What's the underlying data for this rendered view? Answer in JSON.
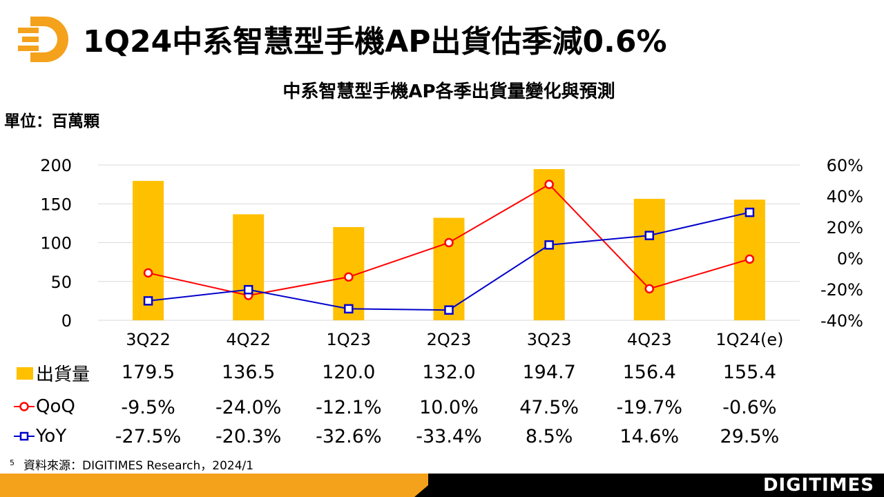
{
  "header": {
    "title": "1Q24中系智慧型手機AP出貨估季減0.6%",
    "logo_icon": "digitimes-d-logo-icon",
    "logo_color": "#F4A11C"
  },
  "chart_title": "中系智慧型手機AP各季出貨量變化與預測",
  "unit_label": "單位：百萬顆",
  "chart_data": {
    "type": "bar",
    "title": "中系智慧型手機AP各季出貨量變化與預測",
    "categories": [
      "3Q22",
      "4Q22",
      "1Q23",
      "2Q23",
      "3Q23",
      "4Q23",
      "1Q24(e)"
    ],
    "series": [
      {
        "name": "出貨量",
        "type": "bar",
        "axis": "left",
        "color": "#FFC000",
        "values": [
          179.5,
          136.5,
          120.0,
          132.0,
          194.7,
          156.4,
          155.4
        ],
        "labels": [
          "179.5",
          "136.5",
          "120.0",
          "132.0",
          "194.7",
          "156.4",
          "155.4"
        ]
      },
      {
        "name": "QoQ",
        "type": "line",
        "axis": "right",
        "color": "#FF0000",
        "marker": "circle",
        "values": [
          -9.5,
          -24.0,
          -12.1,
          10.0,
          47.5,
          -19.7,
          -0.6
        ],
        "labels": [
          "-9.5%",
          "-24.0%",
          "-12.1%",
          "10.0%",
          "47.5%",
          "-19.7%",
          "-0.6%"
        ]
      },
      {
        "name": "YoY",
        "type": "line",
        "axis": "right",
        "color": "#0000CC",
        "marker": "square",
        "values": [
          -27.5,
          -20.3,
          -32.6,
          -33.4,
          8.5,
          14.6,
          29.5
        ],
        "labels": [
          "-27.5%",
          "-20.3%",
          "-32.6%",
          "-33.4%",
          "8.5%",
          "14.6%",
          "29.5%"
        ]
      }
    ],
    "ylim": [
      0,
      200
    ],
    "yticks": [
      0,
      50,
      100,
      150,
      200
    ],
    "y2lim": [
      -40,
      60
    ],
    "y2ticks": [
      -40,
      -20,
      0,
      20,
      40,
      60
    ],
    "y2tick_labels": [
      "-40%",
      "-20%",
      "0%",
      "20%",
      "40%",
      "60%"
    ],
    "grid": true,
    "legend": "data-table-bottom",
    "ylabel": "單位：百萬顆"
  },
  "footnote": {
    "page_number": "5",
    "source": "資料來源：DIGITIMES Research，2024/1"
  },
  "footer": {
    "brand": "DIGITIMES",
    "accent_color": "#F4A11C"
  }
}
